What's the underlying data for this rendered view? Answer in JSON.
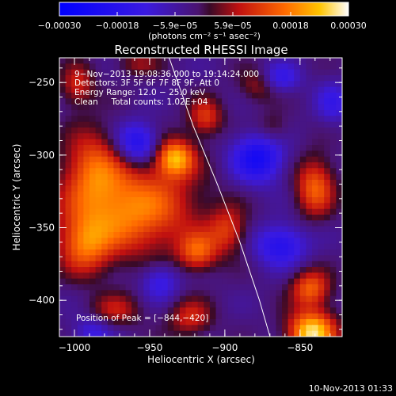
{
  "chart_data": {
    "type": "heatmap",
    "title": "Reconstructed RHESSI Image",
    "xlabel": "Heliocentric X (arcsec)",
    "ylabel": "Heliocentric Y (arcsec)",
    "xlim": [
      -1010,
      -822
    ],
    "ylim": [
      -425,
      -233
    ],
    "x_ticks": [
      -1000,
      -950,
      -900,
      -850
    ],
    "x_tick_labels": [
      "−1000",
      "−950",
      "−900",
      "−850"
    ],
    "y_ticks": [
      -250,
      -300,
      -350,
      -400
    ],
    "y_tick_labels": [
      "−250",
      "−300",
      "−350",
      "−400"
    ],
    "colorbar": {
      "range": [
        -0.0003,
        0.0003
      ],
      "tick_labels": [
        "−0.00030",
        "−0.00018",
        "−5.9e−05",
        "5.9e−05",
        "0.00018",
        "0.00030"
      ],
      "unit_label": "(photons cm⁻² s⁻¹ asec⁻²)"
    },
    "annotations": [
      "9−Nov−2013 19:08:36.000 to 19:14:24.000",
      "Detectors: 3F 5F 6F 7F 8F 9F, Att 0",
      "Energy Range: 12.0 − 25.0 keV",
      "Clean     Total counts: 1.02E+04",
      "Position of Peak = [−844,−420]"
    ],
    "limb_curve": [
      [
        -937,
        -233
      ],
      [
        -921,
        -280
      ],
      [
        -905,
        -320
      ],
      [
        -890,
        -360
      ],
      [
        -877,
        -400
      ],
      [
        -870,
        -425
      ]
    ],
    "sources": [
      {
        "x": -844,
        "y": -420,
        "sx": 11,
        "sy": 10,
        "amp": 0.0003
      },
      {
        "x": -845,
        "y": -390,
        "sx": 9,
        "sy": 9,
        "amp": 0.00018
      },
      {
        "x": -965,
        "y": -335,
        "sx": 30,
        "sy": 22,
        "amp": 0.00022
      },
      {
        "x": -990,
        "y": -305,
        "sx": 13,
        "sy": 18,
        "amp": 0.00014
      },
      {
        "x": -995,
        "y": -360,
        "sx": 12,
        "sy": 14,
        "amp": 0.00016
      },
      {
        "x": -935,
        "y": -300,
        "sx": 9,
        "sy": 9,
        "amp": 0.00024
      },
      {
        "x": -915,
        "y": -272,
        "sx": 8,
        "sy": 9,
        "amp": 0.00014
      },
      {
        "x": -900,
        "y": -350,
        "sx": 9,
        "sy": 11,
        "amp": 0.00013
      },
      {
        "x": -920,
        "y": -365,
        "sx": 9,
        "sy": 9,
        "amp": 0.00016
      },
      {
        "x": -842,
        "y": -320,
        "sx": 9,
        "sy": 14,
        "amp": 0.00018
      },
      {
        "x": -925,
        "y": -410,
        "sx": 10,
        "sy": 9,
        "amp": 0.00012
      },
      {
        "x": -975,
        "y": -405,
        "sx": 12,
        "sy": 8,
        "amp": 0.0001
      },
      {
        "x": -1000,
        "y": -250,
        "sx": 8,
        "sy": 10,
        "amp": 0.00012
      },
      {
        "x": -960,
        "y": -235,
        "sx": 10,
        "sy": 6,
        "amp": 8e-05
      },
      {
        "x": -880,
        "y": -250,
        "sx": 9,
        "sy": 8,
        "amp": 9e-05
      },
      {
        "x": -870,
        "y": -280,
        "sx": 8,
        "sy": 8,
        "amp": 7e-05
      },
      {
        "x": -960,
        "y": -290,
        "sx": 10,
        "sy": 10,
        "amp": -0.00018
      },
      {
        "x": -880,
        "y": -300,
        "sx": 12,
        "sy": 12,
        "amp": -0.0002
      },
      {
        "x": -945,
        "y": -385,
        "sx": 9,
        "sy": 9,
        "amp": -0.00012
      },
      {
        "x": -865,
        "y": -360,
        "sx": 12,
        "sy": 10,
        "amp": -0.00016
      },
      {
        "x": -990,
        "y": -420,
        "sx": 9,
        "sy": 8,
        "amp": -0.0001
      },
      {
        "x": -865,
        "y": -245,
        "sx": 9,
        "sy": 7,
        "amp": -0.00012
      },
      {
        "x": -830,
        "y": -262,
        "sx": 8,
        "sy": 10,
        "amp": -0.0001
      }
    ]
  },
  "footer": {
    "timestamp": "10-Nov-2013 01:33"
  }
}
